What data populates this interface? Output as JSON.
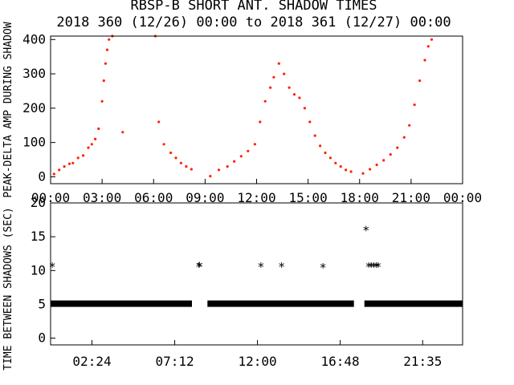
{
  "title": {
    "line1": "RBSP-B SHORT ANT. SHADOW TIMES",
    "line2": "2018 360 (12/26) 00:00 to 2018 361 (12/27) 00:00"
  },
  "colors": {
    "scatter": "#ff2200",
    "axes": "#000000",
    "stars": "#000000"
  },
  "chart_data": [
    {
      "type": "scatter",
      "ylabel": "PEAK-DELTA AMP DURING SHADOW",
      "xlim_hours": [
        0,
        24
      ],
      "ylim": [
        -20,
        410
      ],
      "xtick_labels": [
        "00:00",
        "03:00",
        "06:00",
        "09:00",
        "12:00",
        "15:00",
        "18:00",
        "21:00",
        "00:00"
      ],
      "ytick_labels": [
        "0",
        "100",
        "200",
        "300",
        "400"
      ],
      "series": [
        {
          "points": [
            [
              0.2,
              8
            ],
            [
              0.5,
              20
            ],
            [
              0.8,
              30
            ],
            [
              1.1,
              38
            ],
            [
              1.3,
              40
            ],
            [
              1.6,
              55
            ],
            [
              1.9,
              62
            ],
            [
              2.2,
              85
            ],
            [
              2.4,
              95
            ],
            [
              2.6,
              110
            ],
            [
              2.8,
              140
            ],
            [
              3.0,
              220
            ],
            [
              3.1,
              280
            ],
            [
              3.2,
              330
            ],
            [
              3.3,
              370
            ],
            [
              3.4,
              400
            ],
            [
              3.6,
              410
            ],
            [
              4.2,
              130
            ],
            [
              6.1,
              410
            ],
            [
              6.3,
              160
            ],
            [
              6.6,
              95
            ],
            [
              7.0,
              70
            ],
            [
              7.3,
              55
            ],
            [
              7.6,
              40
            ],
            [
              7.9,
              30
            ],
            [
              8.2,
              22
            ],
            [
              9.3,
              2
            ],
            [
              9.8,
              20
            ],
            [
              10.3,
              30
            ],
            [
              10.7,
              45
            ],
            [
              11.1,
              60
            ],
            [
              11.5,
              75
            ],
            [
              11.9,
              95
            ],
            [
              12.2,
              160
            ],
            [
              12.5,
              220
            ],
            [
              12.8,
              260
            ],
            [
              13.0,
              290
            ],
            [
              13.3,
              330
            ],
            [
              13.6,
              300
            ],
            [
              13.9,
              260
            ],
            [
              14.2,
              240
            ],
            [
              14.5,
              230
            ],
            [
              14.8,
              200
            ],
            [
              15.1,
              160
            ],
            [
              15.4,
              120
            ],
            [
              15.7,
              90
            ],
            [
              16.0,
              70
            ],
            [
              16.3,
              55
            ],
            [
              16.6,
              40
            ],
            [
              16.9,
              30
            ],
            [
              17.2,
              20
            ],
            [
              17.5,
              15
            ],
            [
              18.2,
              10
            ],
            [
              18.6,
              22
            ],
            [
              19.0,
              35
            ],
            [
              19.4,
              48
            ],
            [
              19.8,
              65
            ],
            [
              20.2,
              85
            ],
            [
              20.6,
              115
            ],
            [
              20.9,
              150
            ],
            [
              21.2,
              210
            ],
            [
              21.5,
              280
            ],
            [
              21.8,
              340
            ],
            [
              22.0,
              380
            ],
            [
              22.2,
              400
            ]
          ]
        }
      ]
    },
    {
      "type": "scatter",
      "ylabel": "TIME BETWEEN SHADOWS (SEC)",
      "xlim_hours": [
        0,
        23.9
      ],
      "ylim": [
        -1,
        20
      ],
      "xtick_labels": [
        "02:24",
        "07:12",
        "12:00",
        "16:48",
        "21:35"
      ],
      "ytick_labels": [
        "0",
        "5",
        "10",
        "15",
        "20"
      ],
      "series": [
        {
          "points": [
            [
              0.1,
              10.6
            ],
            [
              8.6,
              10.6
            ],
            [
              8.65,
              10.7
            ],
            [
              12.2,
              10.6
            ],
            [
              13.4,
              10.6
            ],
            [
              15.8,
              10.5
            ],
            [
              18.3,
              16.0
            ],
            [
              18.45,
              10.6
            ],
            [
              18.6,
              10.6
            ],
            [
              18.75,
              10.6
            ],
            [
              18.9,
              10.6
            ],
            [
              19.0,
              10.6
            ]
          ],
          "band": {
            "y": 5.1,
            "x_ranges": [
              [
                0.0,
                8.2
              ],
              [
                9.1,
                17.6
              ],
              [
                18.2,
                23.9
              ]
            ]
          }
        }
      ]
    }
  ]
}
